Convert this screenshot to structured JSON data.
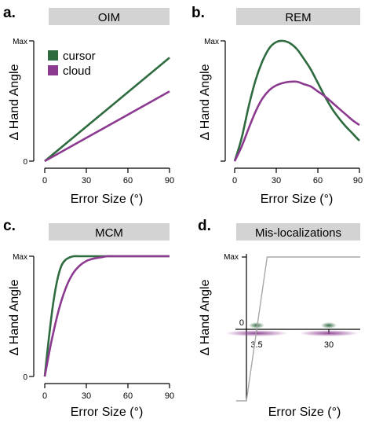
{
  "colors": {
    "cursor": "#2e6b3f",
    "cloud": "#8b3a8f",
    "header_bg": "#d3d3d3",
    "axis": "#000000",
    "gray_line": "#a8a8a8"
  },
  "chart_data": [
    {
      "panel_letter": "a.",
      "title": "OIM",
      "type": "line",
      "xlabel": "Error Size (°)",
      "ylabel": "Δ Hand Angle",
      "x_ticks": [
        "0",
        "30",
        "60",
        "90"
      ],
      "y_ticks": [
        "0",
        "Max"
      ],
      "xlim": [
        0,
        90
      ],
      "ylim": [
        0,
        1
      ],
      "legend": {
        "placement": "top-left",
        "entries": [
          "cursor",
          "cloud"
        ]
      },
      "series": [
        {
          "name": "cursor",
          "color_key": "cursor",
          "x": [
            0,
            90
          ],
          "y": [
            0,
            0.86
          ]
        },
        {
          "name": "cloud",
          "color_key": "cloud",
          "x": [
            0,
            90
          ],
          "y": [
            0,
            0.58
          ]
        }
      ]
    },
    {
      "panel_letter": "b.",
      "title": "REM",
      "type": "line",
      "xlabel": "Error Size (°)",
      "ylabel": "Δ Hand Angle",
      "x_ticks": [
        "0",
        "30",
        "60",
        "90"
      ],
      "y_ticks": [
        "Max"
      ],
      "xlim": [
        0,
        90
      ],
      "ylim": [
        0,
        1
      ],
      "series": [
        {
          "name": "cursor",
          "color_key": "cursor",
          "x": [
            0,
            5,
            10,
            15,
            20,
            25,
            30,
            35,
            40,
            45,
            50,
            55,
            60,
            65,
            70,
            75,
            80,
            85,
            90
          ],
          "y": [
            0,
            0.19,
            0.45,
            0.67,
            0.83,
            0.94,
            0.99,
            1.0,
            0.98,
            0.93,
            0.85,
            0.76,
            0.65,
            0.54,
            0.44,
            0.36,
            0.29,
            0.23,
            0.17
          ]
        },
        {
          "name": "cloud",
          "color_key": "cloud",
          "x": [
            0,
            5,
            10,
            15,
            20,
            25,
            30,
            35,
            40,
            45,
            50,
            55,
            60,
            65,
            70,
            75,
            80,
            85,
            90
          ],
          "y": [
            0,
            0.12,
            0.27,
            0.41,
            0.52,
            0.59,
            0.63,
            0.65,
            0.66,
            0.66,
            0.64,
            0.62,
            0.58,
            0.54,
            0.49,
            0.44,
            0.39,
            0.34,
            0.3
          ]
        }
      ]
    },
    {
      "panel_letter": "c.",
      "title": "MCM",
      "type": "line",
      "xlabel": "Error Size (°)",
      "ylabel": "Δ Hand Angle",
      "x_ticks": [
        "0",
        "30",
        "60",
        "90"
      ],
      "y_ticks": [
        "0",
        "Max"
      ],
      "xlim": [
        0,
        90
      ],
      "ylim": [
        0,
        1
      ],
      "series": [
        {
          "name": "cursor",
          "color_key": "cursor",
          "x": [
            0,
            3,
            6,
            9,
            12,
            15,
            18,
            21,
            25,
            30,
            40,
            50,
            60,
            70,
            80,
            90
          ],
          "y": [
            0,
            0.32,
            0.6,
            0.8,
            0.92,
            0.97,
            0.99,
            1.0,
            1.0,
            1.0,
            1.0,
            1.0,
            1.0,
            1.0,
            1.0,
            1.0
          ]
        },
        {
          "name": "cloud",
          "color_key": "cloud",
          "x": [
            0,
            5,
            10,
            15,
            20,
            25,
            30,
            35,
            40,
            45,
            50,
            55,
            60,
            70,
            80,
            90
          ],
          "y": [
            0,
            0.3,
            0.55,
            0.73,
            0.85,
            0.92,
            0.96,
            0.98,
            0.99,
            1.0,
            1.0,
            1.0,
            1.0,
            1.0,
            1.0,
            1.0
          ]
        }
      ]
    },
    {
      "panel_letter": "d.",
      "title": "Mis-localizations",
      "type": "line",
      "xlabel": "Error Size (°)",
      "ylabel": "Δ Hand Angle",
      "x_ticks": [
        "3.5",
        "30"
      ],
      "y_ticks": [
        "Max",
        "0"
      ],
      "series": [
        {
          "color_key": "gray_line",
          "x": [
            -10,
            -5,
            5,
            50
          ],
          "y": [
            -1,
            -1,
            1,
            1
          ]
        }
      ],
      "error_distributions": [
        {
          "at": "3.5",
          "cursor_color_key": "cursor",
          "cloud_color_key": "cloud"
        },
        {
          "at": "30",
          "cursor_color_key": "cursor",
          "cloud_color_key": "cloud"
        }
      ]
    }
  ]
}
